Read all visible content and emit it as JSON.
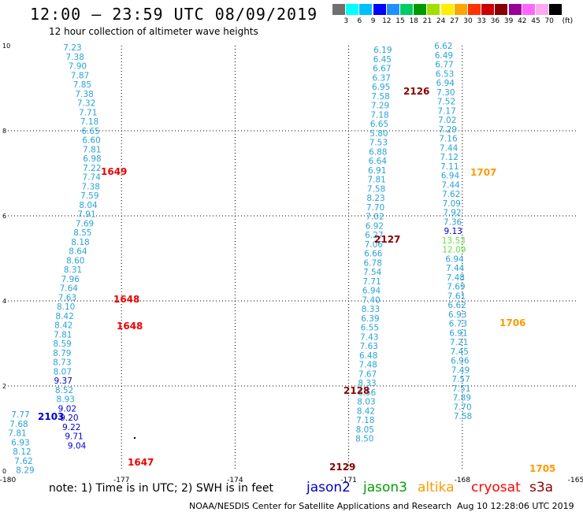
{
  "title": "12:00 – 23:59 UTC 08/09/2019",
  "subtitle": "12 hour collection of altimeter wave heights",
  "note": "note: 1) Time is in UTC; 2) SWH is in feet",
  "credit": "NOAA/NESDIS Center for Satellite Applications and Research",
  "timestamp": "Aug 10 12:28:06 UTC 2019",
  "satellites": [
    {
      "name": "jason2",
      "color": "#0000cc"
    },
    {
      "name": "jason3",
      "color": "#00a000"
    },
    {
      "name": "altika",
      "color": "#ff9900"
    },
    {
      "name": "cryosat",
      "color": "#ff0000"
    },
    {
      "name": "s3a",
      "color": "#880000"
    }
  ],
  "colorbar": {
    "colors": [
      "#707070",
      "#00ffff",
      "#00bfff",
      "#0000ff",
      "#1e90ff",
      "#00cc66",
      "#009900",
      "#a0e000",
      "#ffee00",
      "#ffa500",
      "#ff3300",
      "#cc0000",
      "#880000",
      "#990099",
      "#ff66ff",
      "#ffaaee",
      "#000000"
    ],
    "labels": [
      "3",
      "6",
      "9",
      "12",
      "15",
      "18",
      "21",
      "24",
      "27",
      "30",
      "33",
      "36",
      "39",
      "42",
      "45",
      "70",
      "(ft)"
    ]
  },
  "map": {
    "x_ticks": [
      "-180",
      "-177",
      "-174",
      "-171",
      "-168",
      "-165"
    ],
    "y_ticks": [
      "0",
      "2",
      "4",
      "6",
      "8",
      "10"
    ]
  },
  "tracks": [
    {
      "lon": -176.35,
      "color": "#29a3d6",
      "values": [
        "7.23",
        "7.38",
        "7.90",
        "7.87",
        "7.85",
        "7.38",
        "7.32",
        "7.71",
        "7.18",
        "6.65",
        "6.60",
        "7.81",
        "6.98",
        "7.22",
        "7.74",
        "7.38",
        "7.59",
        "8.04",
        "7.91",
        "7.69",
        "8.55",
        "8.18",
        "8.64",
        "8.60",
        "8.31",
        "7.96",
        "7.64",
        "7.63",
        "8.10",
        "8.42",
        "8.42",
        "7.81",
        "8.59",
        "8.79",
        "8.73",
        "8.07",
        "9.37",
        "8.52",
        "8.93",
        "9.02",
        "9.20",
        "9.22",
        "9.71",
        "9.04"
      ]
    },
    {
      "lon": -179.6,
      "color": "#29a3d6",
      "values": [
        "7.77",
        "7.68",
        "7.81",
        "6.93",
        "8.12",
        "7.62",
        "8.29"
      ]
    },
    {
      "lon": -170.1,
      "color": "#29a3d6",
      "values": [
        "6.19",
        "6.45",
        "6.67",
        "6.37",
        "6.95",
        "7.58",
        "7.29",
        "7.18",
        "6.65",
        "5.80",
        "7.53",
        "6.88",
        "6.64",
        "6.91",
        "7.81",
        "7.58",
        "8.23",
        "7.70",
        "7.02",
        "6.92",
        "6.27",
        "7.06",
        "6.66",
        "6.78",
        "7.54",
        "7.71",
        "6.94",
        "7.40",
        "8.33",
        "6.39",
        "6.55",
        "7.43",
        "7.63",
        "6.48",
        "7.48",
        "7.67",
        "8.33",
        "6.56",
        "8.03",
        "8.42",
        "7.18",
        "8.05",
        "8.50"
      ]
    },
    {
      "lon": -168.5,
      "color": "#29a3d6",
      "values": [
        "6.62",
        "6.49",
        "6.77",
        "6.53",
        "6.94",
        "7.30",
        "7.52",
        "7.17",
        "7.02",
        "7.29",
        "7.16",
        "7.44",
        "7.12",
        "7.11",
        "6.94",
        "7.44",
        "7.62",
        "7.09",
        "7.92",
        "7.36",
        "9.13",
        "13.53",
        "12.09",
        "6.94",
        "7.44",
        "7.48",
        "7.69",
        "7.61",
        "6.62",
        "6.93",
        "6.73",
        "6.91",
        "7.21",
        "7.45",
        "6.96",
        "7.49",
        "7.57",
        "7.51",
        "7.89",
        "7.70",
        "7.58"
      ]
    }
  ],
  "labels": [
    {
      "text": "1649",
      "color": "#ee0000"
    },
    {
      "text": "1648",
      "color": "#ee0000"
    },
    {
      "text": "1648",
      "color": "#ee0000"
    },
    {
      "text": "1647",
      "color": "#ee0000"
    },
    {
      "text": "2103",
      "color": "#0000cc"
    },
    {
      "text": "2126",
      "color": "#880000"
    },
    {
      "text": "2127",
      "color": "#880000"
    },
    {
      "text": "2128",
      "color": "#880000"
    },
    {
      "text": "2129",
      "color": "#880000"
    },
    {
      "text": "1707",
      "color": "#ff9900"
    },
    {
      "text": "1706",
      "color": "#ff9900"
    },
    {
      "text": "1705",
      "color": "#ff9900"
    }
  ]
}
